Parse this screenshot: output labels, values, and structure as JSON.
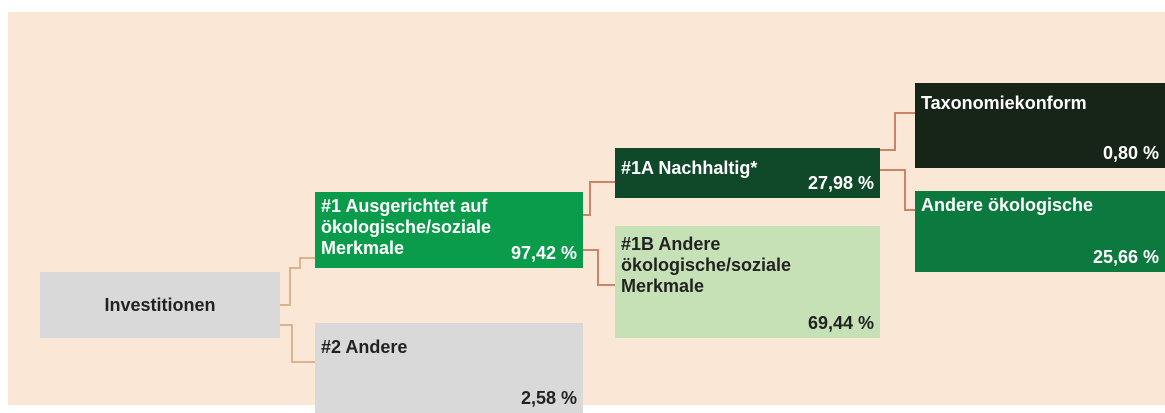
{
  "nodes": [
    {
      "label": [
        "Investitionen"
      ]
    },
    {
      "label": [
        "#1 Ausgerichtet auf",
        "ökologische/soziale",
        "Merkmale"
      ],
      "value": "97,42 %"
    },
    {
      "label": [
        "#2 Andere"
      ],
      "value": "2,58 %"
    },
    {
      "label": [
        "#1A Nachhaltig*"
      ],
      "value": "27,98 %"
    },
    {
      "label": [
        "#1B Andere",
        "ökologische/soziale",
        "Merkmale"
      ],
      "value": "69,44 %"
    },
    {
      "label": [
        "Taxonomiekonform"
      ],
      "value": "0,80 %"
    },
    {
      "label": [
        "Andere ökologische"
      ],
      "value": "25,66 %"
    }
  ]
}
